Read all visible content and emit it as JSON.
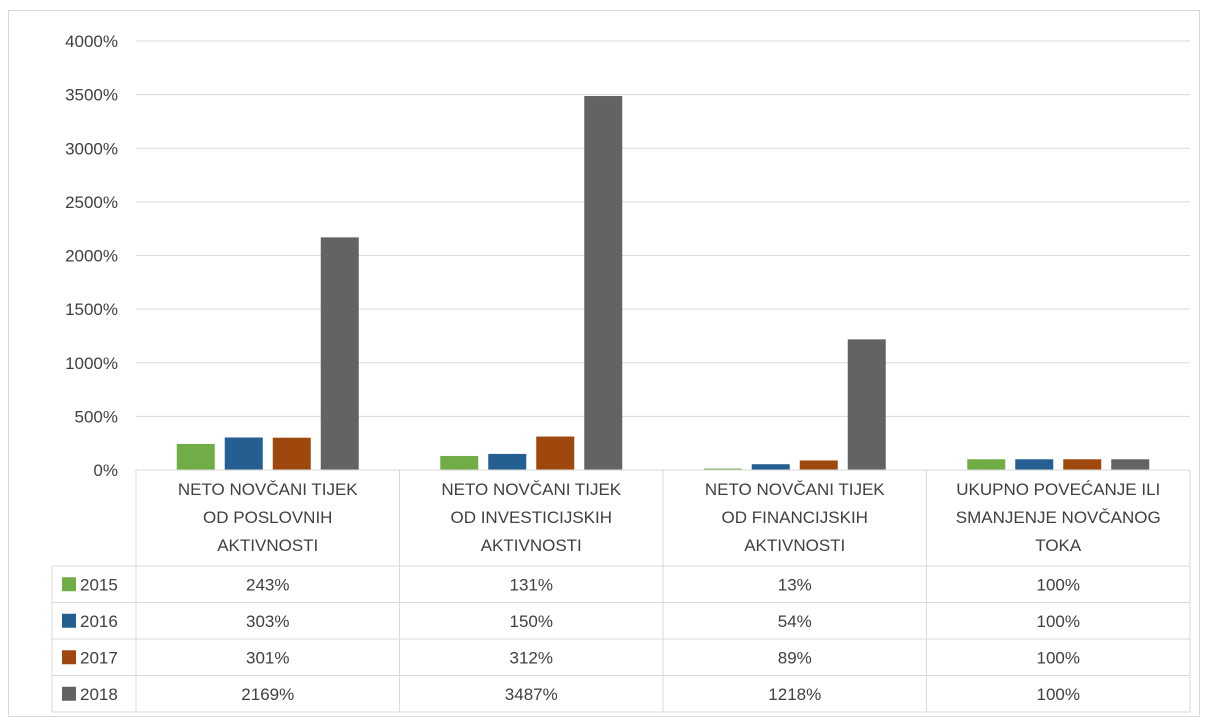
{
  "chart_data": {
    "type": "bar",
    "title": "",
    "xlabel": "",
    "ylabel": "",
    "ylim": [
      0,
      4000
    ],
    "y_ticks": [
      "0%",
      "500%",
      "1000%",
      "1500%",
      "2000%",
      "2500%",
      "3000%",
      "3500%",
      "4000%"
    ],
    "grid": true,
    "legend_placement": "data-table",
    "categories": [
      [
        "NETO NOVČANI TIJEK",
        "OD POSLOVNIH",
        "AKTIVNOSTI"
      ],
      [
        "NETO NOVČANI TIJEK",
        "OD INVESTICIJSKIH",
        "AKTIVNOSTI"
      ],
      [
        "NETO NOVČANI TIJEK",
        "OD FINANCIJSKIH",
        "AKTIVNOSTI"
      ],
      [
        "UKUPNO POVEĆANJE ILI",
        "SMANJENJE NOVČANOG",
        "TOKA"
      ]
    ],
    "series": [
      {
        "name": "2015",
        "color": "#70ad47",
        "values": [
          243,
          131,
          13,
          100
        ],
        "labels": [
          "243%",
          "131%",
          "13%",
          "100%"
        ]
      },
      {
        "name": "2016",
        "color": "#255e91",
        "values": [
          303,
          150,
          54,
          100
        ],
        "labels": [
          "303%",
          "150%",
          "54%",
          "100%"
        ]
      },
      {
        "name": "2017",
        "color": "#9e480e",
        "values": [
          301,
          312,
          89,
          100
        ],
        "labels": [
          "301%",
          "312%",
          "89%",
          "100%"
        ]
      },
      {
        "name": "2018",
        "color": "#636363",
        "values": [
          2169,
          3487,
          1218,
          100
        ],
        "labels": [
          "2169%",
          "3487%",
          "1218%",
          "100%"
        ]
      }
    ]
  }
}
